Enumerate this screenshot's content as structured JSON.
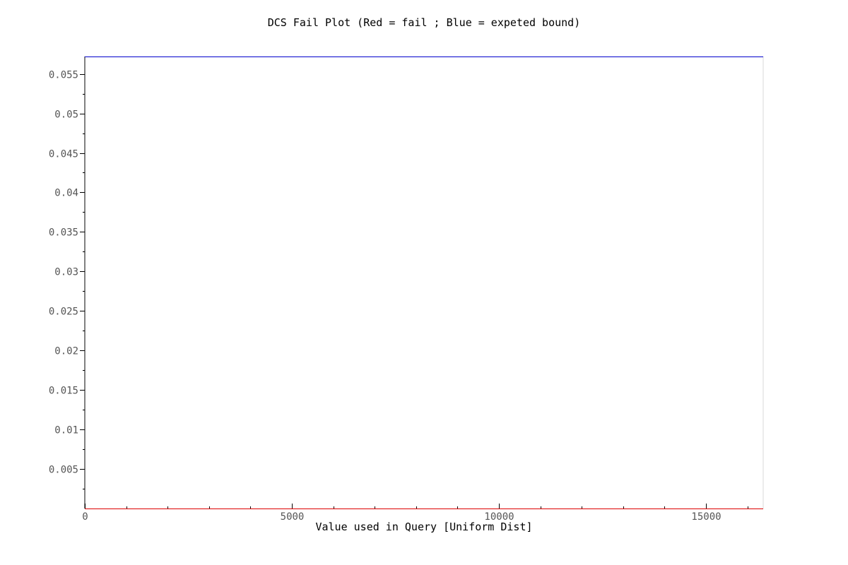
{
  "chart_data": {
    "type": "line",
    "title": "DCS Fail Plot (Red = fail ; Blue = expeted bound)",
    "xlabel": "Value used in Query [Uniform Dist]",
    "ylabel": "",
    "xlim": [
      0,
      16384
    ],
    "ylim": [
      0,
      0.0572
    ],
    "x_ticks": [
      0,
      5000,
      10000,
      15000
    ],
    "x_tick_labels": [
      "0",
      "5000",
      "10000",
      "15000"
    ],
    "x_minor_step": 1000,
    "y_ticks": [
      0.005,
      0.01,
      0.015,
      0.02,
      0.025,
      0.03,
      0.035,
      0.04,
      0.045,
      0.05,
      0.055
    ],
    "y_tick_labels": [
      "0.005",
      "0.01",
      "0.015",
      "0.02",
      "0.025",
      "0.03",
      "0.035",
      "0.04",
      "0.045",
      "0.05",
      "0.055"
    ],
    "y_minor_step": 0.0025,
    "grid": false,
    "series": [
      {
        "color": "#0000cc",
        "x": [
          0,
          16384
        ],
        "y": [
          0.0572,
          0.0572
        ]
      },
      {
        "color": "#dd0000",
        "x": [
          0,
          16384
        ],
        "y": [
          0,
          0
        ]
      }
    ]
  }
}
